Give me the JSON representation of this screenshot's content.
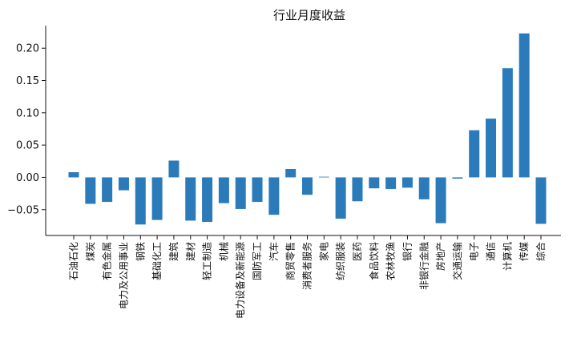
{
  "chart_data": {
    "type": "bar",
    "title": "行业月度收益",
    "xlabel": "",
    "ylabel": "",
    "categories": [
      "石油石化",
      "煤炭",
      "有色金属",
      "电力及公用事业",
      "钢铁",
      "基础化工",
      "建筑",
      "建材",
      "轻工制造",
      "机械",
      "电力设备及新能源",
      "国防军工",
      "汽车",
      "商贸零售",
      "消费者服务",
      "家电",
      "纺织服装",
      "医药",
      "食品饮料",
      "农林牧渔",
      "银行",
      "非银行金融",
      "房地产",
      "交通运输",
      "电子",
      "通信",
      "计算机",
      "传媒",
      "综合"
    ],
    "values": [
      0.008,
      -0.041,
      -0.038,
      -0.02,
      -0.073,
      -0.066,
      0.026,
      -0.067,
      -0.069,
      -0.04,
      -0.049,
      -0.038,
      -0.058,
      0.013,
      -0.027,
      0.001,
      -0.064,
      -0.037,
      -0.017,
      -0.018,
      -0.016,
      -0.034,
      -0.071,
      -0.002,
      0.073,
      0.091,
      0.169,
      0.223,
      -0.072
    ],
    "ylim": [
      -0.09,
      0.235
    ],
    "yticks": [
      -0.05,
      0.0,
      0.05,
      0.1,
      0.15,
      0.2
    ],
    "ytick_labels": [
      "−0.05",
      "0.00",
      "0.05",
      "0.10",
      "0.15",
      "0.20"
    ],
    "bar_color": "#2b7bba",
    "grid": false,
    "legend": "none"
  }
}
